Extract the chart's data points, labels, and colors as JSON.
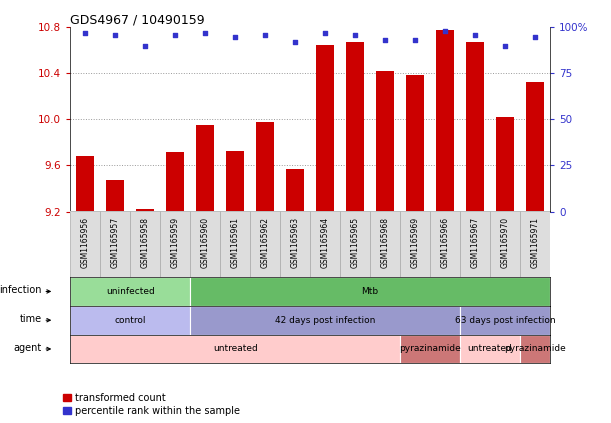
{
  "title": "GDS4967 / 10490159",
  "samples": [
    "GSM1165956",
    "GSM1165957",
    "GSM1165958",
    "GSM1165959",
    "GSM1165960",
    "GSM1165961",
    "GSM1165962",
    "GSM1165963",
    "GSM1165964",
    "GSM1165965",
    "GSM1165968",
    "GSM1165969",
    "GSM1165966",
    "GSM1165967",
    "GSM1165970",
    "GSM1165971"
  ],
  "bar_values": [
    9.68,
    9.47,
    9.22,
    9.72,
    9.95,
    9.73,
    9.98,
    9.57,
    10.65,
    10.67,
    10.42,
    10.39,
    10.78,
    10.67,
    10.02,
    10.33
  ],
  "dot_values": [
    97,
    96,
    90,
    96,
    97,
    95,
    96,
    92,
    97,
    96,
    93,
    93,
    98,
    96,
    90,
    95
  ],
  "ylim_left": [
    9.2,
    10.8
  ],
  "ylim_right": [
    0,
    100
  ],
  "yticks_left": [
    9.2,
    9.6,
    10.0,
    10.4,
    10.8
  ],
  "yticks_right": [
    0,
    25,
    50,
    75,
    100
  ],
  "ytick_labels_right": [
    "0",
    "25",
    "50",
    "75",
    "100%"
  ],
  "bar_color": "#cc0000",
  "dot_color": "#3333cc",
  "bar_bottom": 9.2,
  "infection_blocks": [
    {
      "label": "uninfected",
      "start": 0,
      "end": 4,
      "color": "#99dd99"
    },
    {
      "label": "Mtb",
      "start": 4,
      "end": 16,
      "color": "#66bb66"
    }
  ],
  "time_blocks": [
    {
      "label": "control",
      "start": 0,
      "end": 4,
      "color": "#bbbbee"
    },
    {
      "label": "42 days post infection",
      "start": 4,
      "end": 13,
      "color": "#9999cc"
    },
    {
      "label": "63 days post infection",
      "start": 13,
      "end": 16,
      "color": "#9999cc"
    }
  ],
  "agent_blocks": [
    {
      "label": "untreated",
      "start": 0,
      "end": 11,
      "color": "#ffcccc"
    },
    {
      "label": "pyrazinamide",
      "start": 11,
      "end": 13,
      "color": "#cc7777"
    },
    {
      "label": "untreated",
      "start": 13,
      "end": 15,
      "color": "#ffcccc"
    },
    {
      "label": "pyrazinamide",
      "start": 15,
      "end": 16,
      "color": "#cc7777"
    }
  ],
  "legend_items": [
    {
      "label": "transformed count",
      "color": "#cc0000"
    },
    {
      "label": "percentile rank within the sample",
      "color": "#3333cc"
    }
  ],
  "row_labels": [
    "infection",
    "time",
    "agent"
  ],
  "background_color": "#ffffff",
  "grid_color": "#888888",
  "tick_label_color_left": "#cc0000",
  "tick_label_color_right": "#3333cc",
  "sample_box_color": "#dddddd",
  "sample_box_border": "#aaaaaa"
}
